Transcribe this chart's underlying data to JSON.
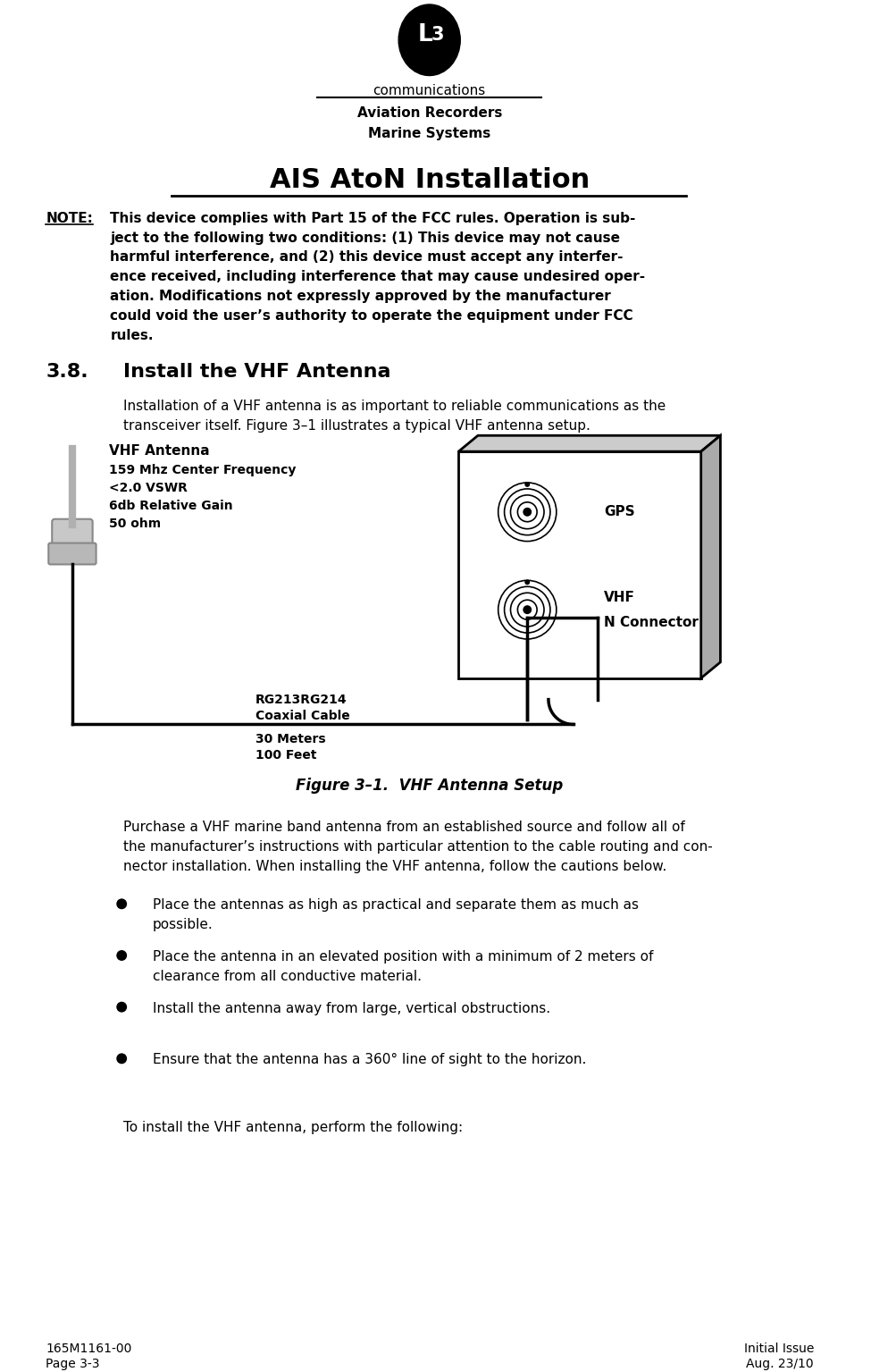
{
  "bg_color": "#ffffff",
  "text_color": "#000000",
  "page_width": 9.75,
  "page_height": 15.35,
  "logo_text": "communications",
  "header_line1": "Aviation Recorders",
  "header_line2": "Marine Systems",
  "title": "AIS AtoN Installation",
  "note_label": "NOTE:",
  "note_text": "This device complies with Part 15 of the FCC rules. Operation is sub-\nject to the following two conditions: (1) This device may not cause\nharmful interference, and (2) this device must accept any interfer-\nence received, including interference that may cause undesired oper-\nation. Modifications not expressly approved by the manufacturer\ncould void the user’s authority to operate the equipment under FCC\nrules.",
  "section_num": "3.8.",
  "section_title": "Install the VHF Antenna",
  "section_body": "Installation of a VHF antenna is as important to reliable communications as the\ntransceiver itself. Figure 3–1 illustrates a typical VHF antenna setup.",
  "antenna_label": "VHF Antenna",
  "antenna_specs": [
    "159 Mhz Center Frequency",
    "<2.0 VSWR",
    "6db Relative Gain",
    "50 ohm"
  ],
  "cable_label1": "RG213RG214",
  "cable_label2": "Coaxial Cable",
  "cable_length1": "30 Meters",
  "cable_length2": "100 Feet",
  "connector_label1": "GPS",
  "connector_label2": "VHF",
  "connector_label3": "N Connector",
  "figure_caption": "Figure 3–1.  VHF Antenna Setup",
  "body_para": "Purchase a VHF marine band antenna from an established source and follow all of\nthe manufacturer’s instructions with particular attention to the cable routing and con-\nnector installation. When installing the VHF antenna, follow the cautions below.",
  "bullets": [
    "Place the antennas as high as practical and separate them as much as\npossible.",
    "Place the antenna in an elevated position with a minimum of 2 meters of\nclearance from all conductive material.",
    "Install the antenna away from large, vertical obstructions.",
    "Ensure that the antenna has a 360° line of sight to the horizon."
  ],
  "closing_text": "To install the VHF antenna, perform the following:",
  "footer_left1": "165M1161-00",
  "footer_left2": "Page 3-3",
  "footer_right1": "Initial Issue",
  "footer_right2": "Aug. 23/10"
}
